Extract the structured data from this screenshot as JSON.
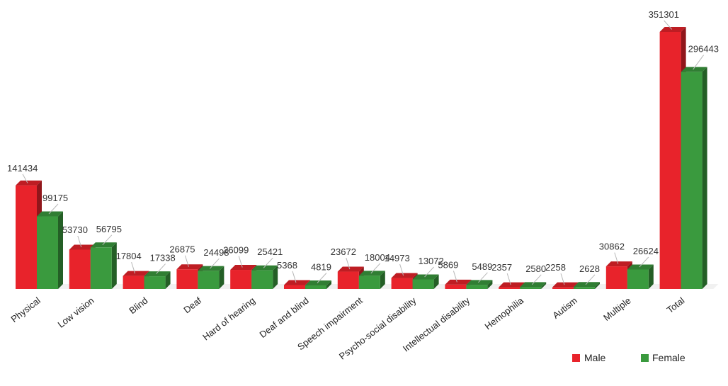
{
  "chart_data": {
    "type": "bar",
    "title": "",
    "xlabel": "",
    "ylabel": "",
    "style": "3d-clustered-column",
    "grid": false,
    "legend_position": "bottom-right",
    "ylim": [
      0,
      360000
    ],
    "categories": [
      "Physical",
      "Low vision",
      "Blind",
      "Deaf",
      "Hard of hearing",
      "Deaf and blind",
      "Speech impairment",
      "Psycho-social disability",
      "Intellectual disability",
      "Hemophilia",
      "Autism",
      "Multiple",
      "Total"
    ],
    "series": [
      {
        "name": "Male",
        "color": "#e8232b",
        "values": [
          141434,
          53730,
          17804,
          26875,
          26099,
          5368,
          23672,
          14973,
          5869,
          2357,
          2258,
          30862,
          351301
        ]
      },
      {
        "name": "Female",
        "color": "#3a9a3e",
        "values": [
          99175,
          56795,
          17338,
          24498,
          25421,
          4819,
          18004,
          13072,
          5489,
          2580,
          2628,
          26624,
          296443
        ]
      }
    ]
  }
}
